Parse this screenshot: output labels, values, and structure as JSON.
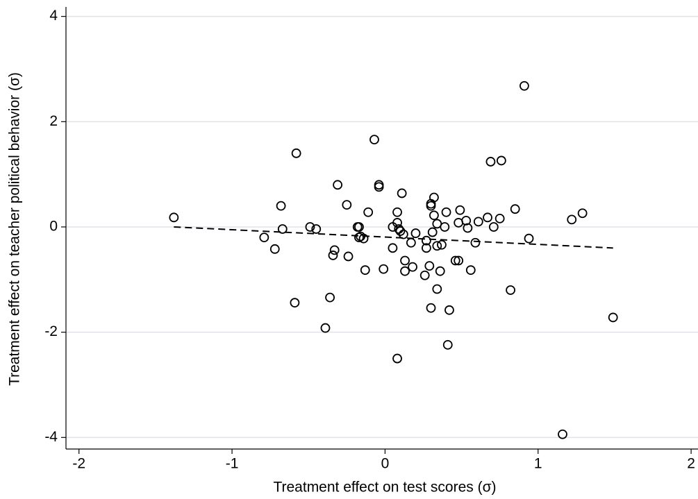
{
  "chart_data": {
    "type": "scatter",
    "xlabel": "Treatment effect on test scores (σ)",
    "ylabel": "Treatment effect on teacher political behavior (σ)",
    "x": [
      -1.38,
      -0.79,
      -0.72,
      -0.68,
      -0.67,
      -0.58,
      -0.59,
      -0.49,
      -0.45,
      -0.39,
      -0.36,
      -0.34,
      -0.33,
      -0.31,
      -0.25,
      -0.24,
      -0.18,
      -0.17,
      -0.17,
      -0.16,
      -0.14,
      -0.13,
      -0.11,
      -0.07,
      -0.04,
      -0.04,
      -0.01,
      0.05,
      0.05,
      0.08,
      0.08,
      0.08,
      0.09,
      0.1,
      0.11,
      0.12,
      0.13,
      0.13,
      0.17,
      0.18,
      0.2,
      0.26,
      0.27,
      0.27,
      0.29,
      0.3,
      0.3,
      0.3,
      0.31,
      0.32,
      0.32,
      0.34,
      0.34,
      0.34,
      0.36,
      0.37,
      0.39,
      0.4,
      0.41,
      0.42,
      0.46,
      0.48,
      0.48,
      0.49,
      0.53,
      0.54,
      0.56,
      0.59,
      0.61,
      0.67,
      0.69,
      0.71,
      0.75,
      0.76,
      0.82,
      0.85,
      0.91,
      0.94,
      1.16,
      1.22,
      1.29,
      1.49
    ],
    "y": [
      0.18,
      -0.2,
      -0.42,
      0.4,
      -0.04,
      1.4,
      -1.44,
      0,
      -0.04,
      -1.92,
      -1.34,
      -0.54,
      -0.44,
      0.8,
      0.42,
      -0.56,
      0,
      0,
      -0.2,
      -0.18,
      -0.22,
      -0.82,
      0.28,
      1.66,
      0.8,
      0.76,
      -0.8,
      0,
      -0.4,
      0.08,
      0.28,
      -2.5,
      -0.04,
      -0.08,
      0.64,
      -0.14,
      -0.64,
      -0.84,
      -0.3,
      -0.76,
      -0.12,
      -0.92,
      -0.4,
      -0.26,
      -0.74,
      0.4,
      0.44,
      -1.54,
      -0.1,
      0.56,
      0.22,
      0.06,
      -0.36,
      -1.18,
      -0.84,
      -0.34,
      0,
      0.28,
      -2.24,
      -1.58,
      -0.64,
      -0.64,
      0.08,
      0.32,
      0.12,
      -0.02,
      -0.82,
      -0.3,
      0.1,
      0.18,
      1.24,
      0,
      0.16,
      1.26,
      -1.2,
      0.34,
      2.68,
      -0.22,
      -3.94,
      0.14,
      0.26,
      -1.72
    ],
    "color": "#000000",
    "fit": {
      "x": [
        -1.38,
        1.49
      ],
      "y": [
        0,
        -0.4
      ]
    },
    "xlim": [
      -2.085,
      2.045
    ],
    "ylim": [
      -4.22,
      4.18
    ],
    "xticks": [
      -2,
      -1,
      0,
      1,
      2
    ],
    "yticks": [
      -4,
      -2,
      0,
      2,
      4
    ],
    "grid": true
  }
}
